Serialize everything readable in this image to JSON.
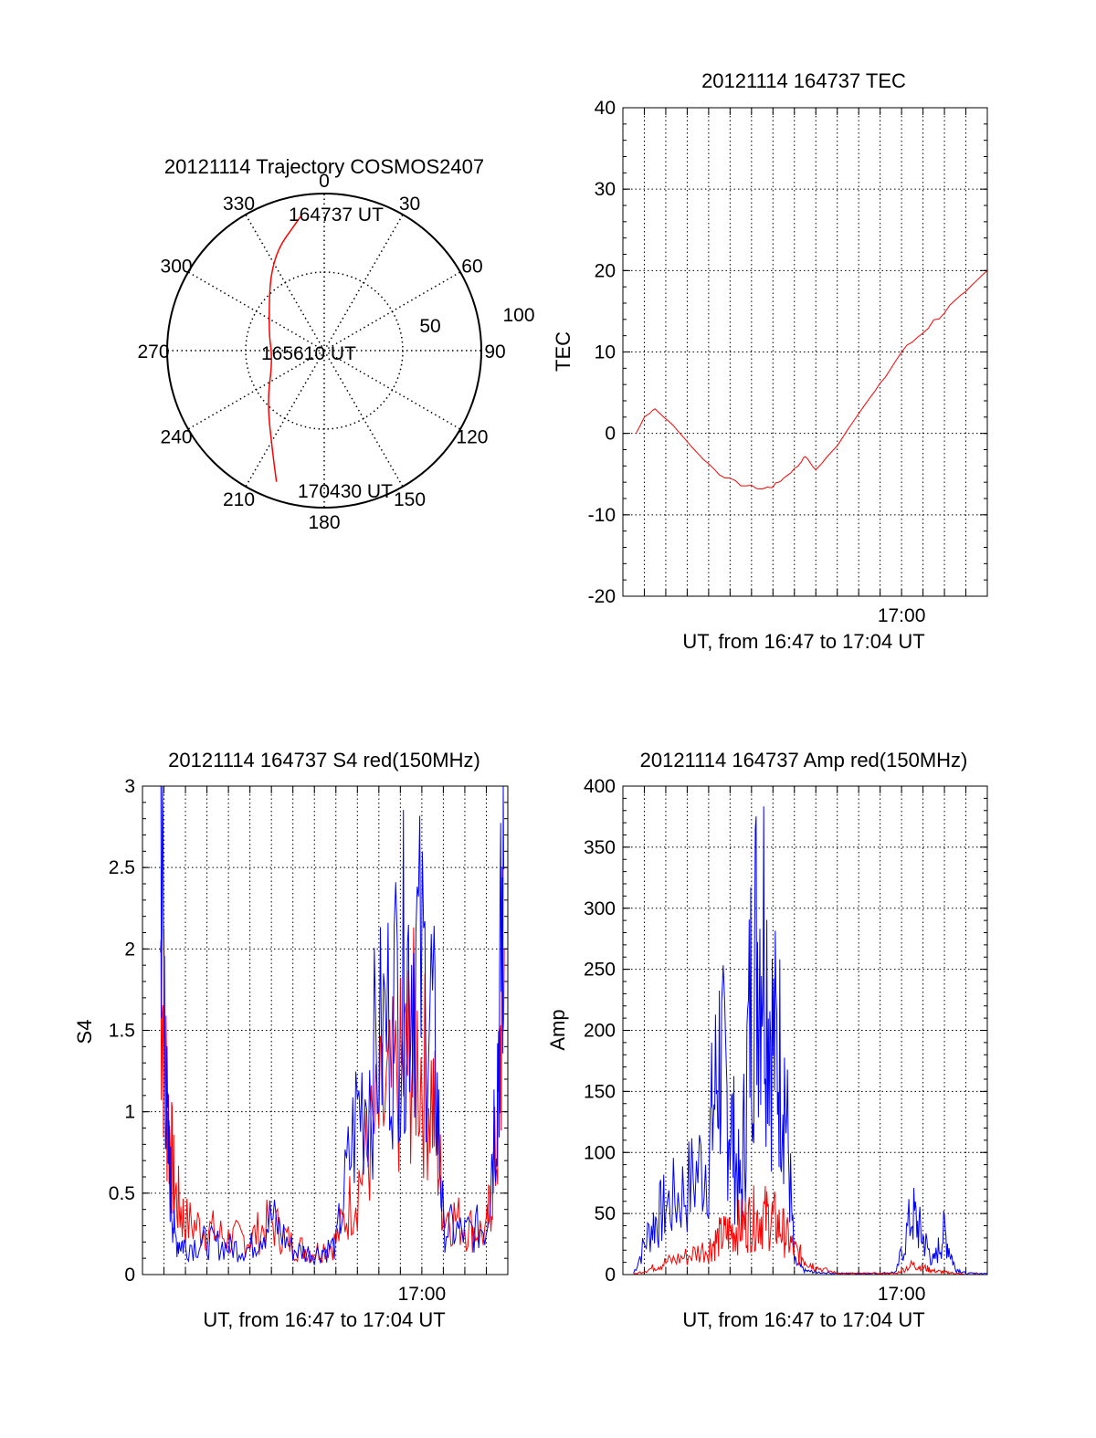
{
  "colors": {
    "red": "#ff0000",
    "blue": "#0000ff",
    "axis": "#000000",
    "grid": "#000000"
  },
  "chart_data": [
    {
      "id": "trajectory",
      "type": "polar",
      "title": "20121114 Trajectory COSMOS2407",
      "angle_labels": [
        "0",
        "30",
        "60",
        "90",
        "120",
        "150",
        "180",
        "210",
        "240",
        "270",
        "300",
        "330"
      ],
      "radial_labels": [
        "50",
        "100"
      ],
      "annotations": [
        "164737 UT",
        "165610 UT",
        "170430 UT"
      ],
      "series": [
        {
          "color": "red",
          "points": [
            {
              "az": 350,
              "el": 12
            },
            {
              "az": 330,
              "el": 29
            },
            {
              "az": 290,
              "el": 56
            },
            {
              "az": 260,
              "el": 60
            },
            {
              "az": 228,
              "el": 46
            },
            {
              "az": 206,
              "el": 23
            },
            {
              "az": 200,
              "el": 10
            }
          ]
        }
      ]
    },
    {
      "id": "tec",
      "type": "line",
      "title": "20121114 164737 TEC",
      "ylabel": "TEC",
      "xlabel": "UT, from 16:47 to 17:04 UT",
      "xtick_labels": [
        "17:00"
      ],
      "ytick_labels": [
        "-20",
        "-10",
        "0",
        "10",
        "20",
        "30",
        "40"
      ],
      "xlim": [
        "16:47",
        "17:04"
      ],
      "ylim": [
        -20,
        40
      ],
      "grid": true,
      "series": [
        {
          "color": "red",
          "x": [
            "16:47:37",
            "16:48:00",
            "16:48:30",
            "16:49:20",
            "16:50:30",
            "16:51:30",
            "16:52:30",
            "16:53:30",
            "16:54:00",
            "16:54:30",
            "16:55:10",
            "16:55:30",
            "16:56:00",
            "16:57:00",
            "16:58:00",
            "16:59:00",
            "17:00:00",
            "17:01:00",
            "17:02:00",
            "17:03:00",
            "17:04:00"
          ],
          "y": [
            0,
            2,
            3,
            1,
            -2.5,
            -5,
            -6.3,
            -6.8,
            -6.5,
            -5.5,
            -4,
            -2.8,
            -4.5,
            -1.5,
            2.5,
            6,
            10,
            12.5,
            15,
            17,
            20
          ]
        }
      ]
    },
    {
      "id": "s4",
      "type": "line",
      "title": "20121114 164737 S4 red(150MHz)",
      "ylabel": "S4",
      "xlabel": "UT, from 16:47 to 17:04 UT",
      "xtick_labels": [
        "17:00"
      ],
      "ytick_labels": [
        "0",
        "0.5",
        "1",
        "1.5",
        "2",
        "2.5",
        "3"
      ],
      "xlim": [
        "16:47",
        "17:04"
      ],
      "ylim": [
        0,
        3
      ],
      "grid": true,
      "series": [
        {
          "color": "red",
          "x": [
            "16:47:50",
            "16:48:10",
            "16:48:30",
            "16:49:00",
            "16:50:00",
            "16:51:00",
            "16:52:00",
            "16:53:00",
            "16:54:00",
            "16:55:00",
            "16:56:00",
            "16:57:00",
            "16:58:00",
            "16:59:00",
            "16:59:40",
            "17:00:30",
            "17:01:00",
            "17:02:00",
            "17:03:00",
            "17:03:30",
            "17:03:50"
          ],
          "y": [
            2.0,
            1.0,
            0.5,
            0.32,
            0.28,
            0.22,
            0.22,
            0.32,
            0.18,
            0.14,
            0.2,
            0.55,
            0.95,
            1.2,
            1.4,
            1.1,
            0.4,
            0.3,
            0.25,
            0.8,
            2.0
          ]
        },
        {
          "color": "blue",
          "x": [
            "16:47:50",
            "16:48:10",
            "16:48:30",
            "16:49:00",
            "16:50:00",
            "16:51:00",
            "16:52:00",
            "16:53:00",
            "16:54:00",
            "16:55:00",
            "16:56:00",
            "16:57:00",
            "16:58:00",
            "16:59:00",
            "16:59:40",
            "17:00:30",
            "17:01:00",
            "17:02:00",
            "17:03:00",
            "17:03:30",
            "17:03:50"
          ],
          "y": [
            3.0,
            0.8,
            0.22,
            0.18,
            0.2,
            0.17,
            0.16,
            0.35,
            0.15,
            0.13,
            0.18,
            1.0,
            1.4,
            1.8,
            2.0,
            1.6,
            0.3,
            0.25,
            0.3,
            1.2,
            2.5
          ]
        }
      ]
    },
    {
      "id": "amp",
      "type": "line",
      "title": "20121114 164737 Amp red(150MHz)",
      "ylabel": "Amp",
      "xlabel": "UT, from 16:47 to 17:04 UT",
      "xtick_labels": [
        "17:00"
      ],
      "ytick_labels": [
        "0",
        "50",
        "100",
        "150",
        "200",
        "250",
        "300",
        "350",
        "400"
      ],
      "xlim": [
        "16:47",
        "17:04"
      ],
      "ylim": [
        0,
        400
      ],
      "grid": true,
      "series": [
        {
          "color": "blue",
          "x": [
            "16:47:30",
            "16:48:20",
            "16:49:00",
            "16:50:00",
            "16:51:00",
            "16:51:30",
            "16:52:00",
            "16:52:30",
            "16:53:00",
            "16:53:30",
            "16:54:00",
            "16:54:30",
            "16:55:00",
            "16:55:30",
            "16:56:00",
            "16:57:00",
            "16:58:00",
            "16:59:00",
            "16:59:45",
            "17:00:30",
            "17:01:00",
            "17:01:30",
            "17:02:00",
            "17:02:30",
            "17:03:00",
            "17:04:00"
          ],
          "y": [
            1,
            40,
            55,
            70,
            100,
            180,
            130,
            60,
            240,
            300,
            190,
            170,
            10,
            3,
            2,
            1,
            1,
            1,
            2,
            50,
            30,
            10,
            35,
            5,
            1,
            1
          ]
        },
        {
          "color": "red",
          "x": [
            "16:47:30",
            "16:48:20",
            "16:49:00",
            "16:50:00",
            "16:51:00",
            "16:51:30",
            "16:52:00",
            "16:52:30",
            "16:53:00",
            "16:53:30",
            "16:54:00",
            "16:54:30",
            "16:55:00",
            "16:55:30",
            "16:56:00",
            "16:57:00",
            "16:58:00",
            "16:59:00",
            "16:59:45",
            "17:00:30",
            "17:01:00",
            "17:01:30",
            "17:02:00",
            "17:02:30",
            "17:03:00",
            "17:04:00"
          ],
          "y": [
            0,
            5,
            10,
            15,
            22,
            30,
            35,
            40,
            45,
            48,
            45,
            35,
            20,
            12,
            6,
            1,
            1,
            1,
            1,
            8,
            6,
            3,
            2,
            1,
            0,
            0
          ]
        }
      ]
    }
  ]
}
